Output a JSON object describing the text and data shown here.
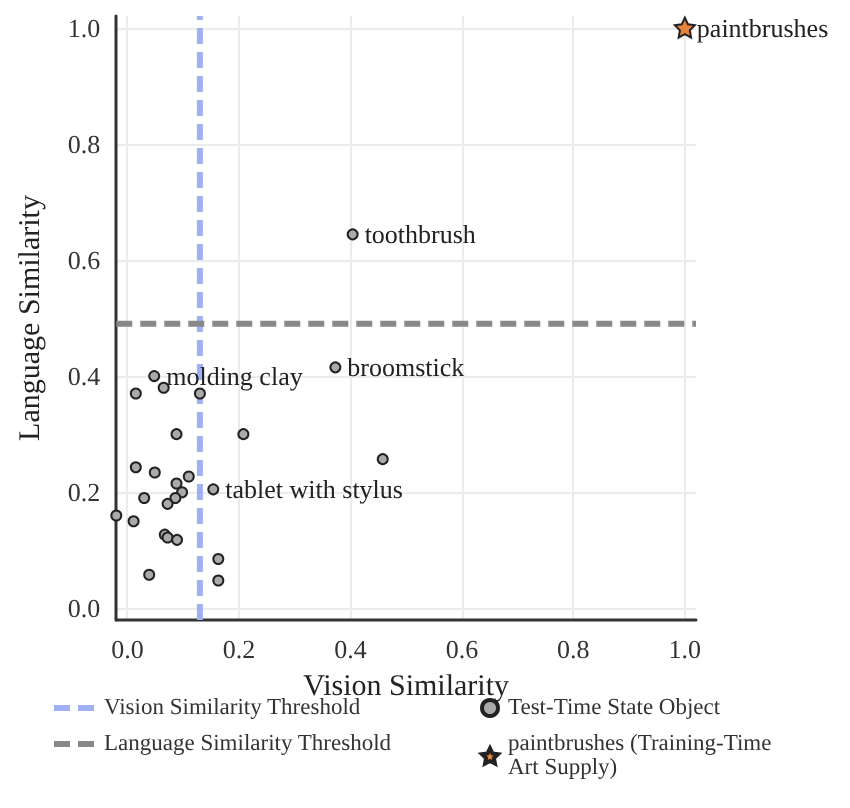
{
  "chart_data": {
    "type": "scatter",
    "xlabel": "Vision Similarity",
    "ylabel": "Language Similarity",
    "xlim": [
      -0.02,
      1.02
    ],
    "ylim": [
      -0.02,
      1.02
    ],
    "xticks": [
      {
        "value": 0,
        "label": "0.0"
      },
      {
        "value": 0.2,
        "label": "0.2"
      },
      {
        "value": 0.4,
        "label": "0.4"
      },
      {
        "value": 0.6,
        "label": "0.6"
      },
      {
        "value": 0.8,
        "label": "0.8"
      },
      {
        "value": 1,
        "label": "1.0"
      }
    ],
    "yticks": [
      {
        "value": 0,
        "label": "0.0"
      },
      {
        "value": 0.2,
        "label": "0.2"
      },
      {
        "value": 0.4,
        "label": "0.4"
      },
      {
        "value": 0.6,
        "label": "0.6"
      },
      {
        "value": 0.8,
        "label": "0.8"
      },
      {
        "value": 1,
        "label": "1.0"
      }
    ],
    "grid": true,
    "legend": "bottom",
    "marker": "circle",
    "series": [
      {
        "name": "Test-Time State Object",
        "color": "#aaaaaa",
        "x": [
          0.048,
          0.065,
          0.13,
          0.015,
          0.088,
          0.208,
          0.015,
          0.049,
          0.11,
          0.088,
          0.098,
          0.086,
          0.072,
          0.03,
          0.154,
          -0.02,
          0.011,
          0.067,
          0.072,
          0.089,
          0.163,
          0.163,
          0.039,
          0.373,
          0.458,
          0.404
        ],
        "values": [
          0.4,
          0.38,
          0.37,
          0.37,
          0.3,
          0.3,
          0.243,
          0.234,
          0.227,
          0.215,
          0.2,
          0.19,
          0.18,
          0.19,
          0.205,
          0.16,
          0.15,
          0.127,
          0.122,
          0.118,
          0.085,
          0.048,
          0.058,
          0.415,
          0.257,
          0.644
        ]
      },
      {
        "name": "paintbrushes (Training-Time Art Supply)",
        "color": "#e8833a",
        "marker": "star",
        "x": [
          1.0
        ],
        "values": [
          1.0
        ]
      }
    ],
    "ref_lines": [
      {
        "axis": "x",
        "value": 0.13,
        "label": "Vision Similarity Threshold",
        "color": "#9fb0f7",
        "line_style": "dashed"
      },
      {
        "axis": "y",
        "value": 0.49,
        "label": "Language Similarity Threshold",
        "color": "#888888",
        "line_style": "dashed"
      }
    ],
    "annotations": [
      {
        "text": "molding clay",
        "x": 0.048,
        "y": 0.4
      },
      {
        "text": "tablet with stylus",
        "x": 0.154,
        "y": 0.205
      },
      {
        "text": "broomstick",
        "x": 0.373,
        "y": 0.415
      },
      {
        "text": "toothbrush",
        "x": 0.404,
        "y": 0.644
      },
      {
        "text": "paintbrushes",
        "x": 1.0,
        "y": 1.0
      }
    ]
  }
}
